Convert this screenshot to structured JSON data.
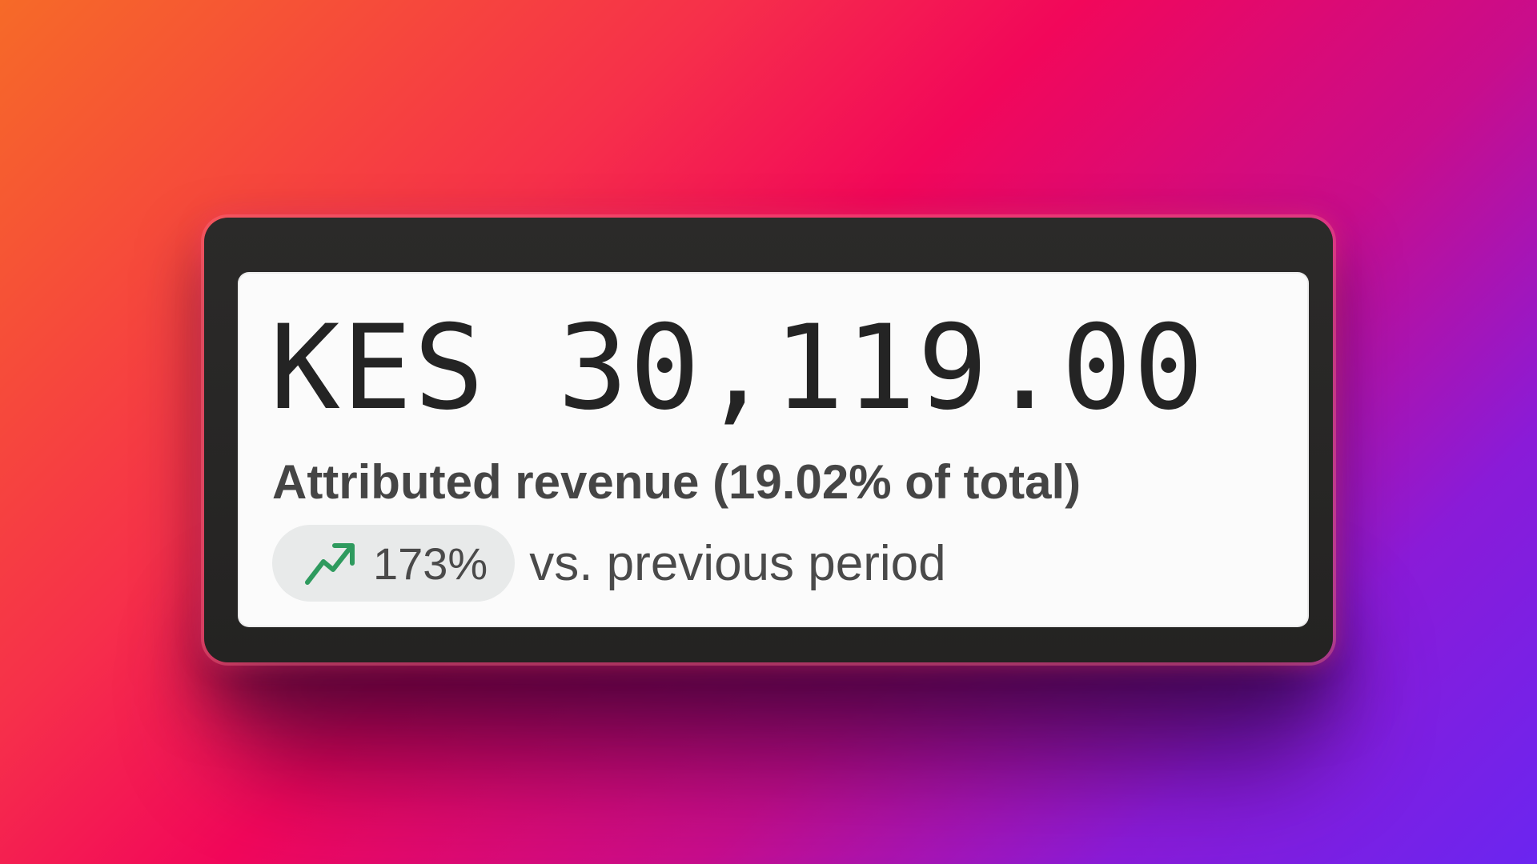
{
  "metric": {
    "value": "KES 30,119.00",
    "label": "Attributed revenue (19.02% of total)"
  },
  "comparison": {
    "change": "173%",
    "trend_icon": "trending-up-icon",
    "trend_color": "#2e9a5e",
    "text": "vs. previous period"
  }
}
